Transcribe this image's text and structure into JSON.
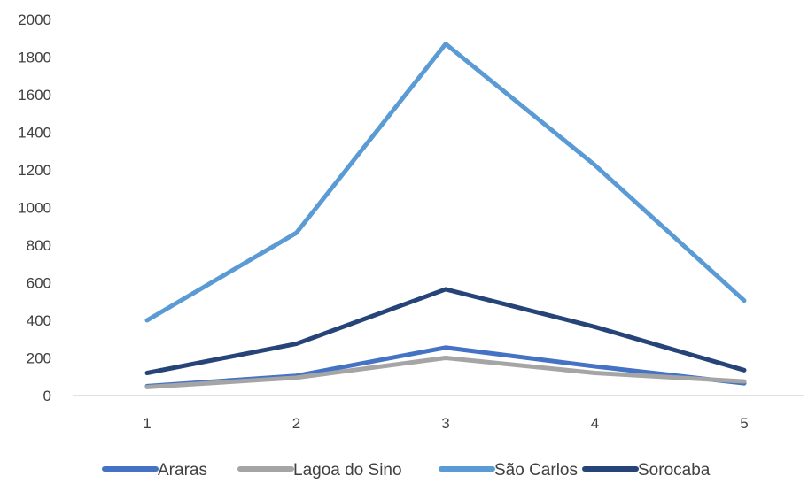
{
  "chart_data": {
    "type": "line",
    "title": "",
    "xlabel": "",
    "ylabel": "",
    "categories": [
      "1",
      "2",
      "3",
      "4",
      "5"
    ],
    "ylim": [
      0,
      2000
    ],
    "yticks": [
      "0",
      "200",
      "400",
      "600",
      "800",
      "1000",
      "1200",
      "1400",
      "1600",
      "1800",
      "2000"
    ],
    "grid": false,
    "legend_position": "bottom",
    "series": [
      {
        "name": "Araras",
        "color": "#4472C4",
        "values": [
          50,
          105,
          255,
          155,
          65
        ]
      },
      {
        "name": "Lagoa do Sino",
        "color": "#A5A5A5",
        "values": [
          45,
          95,
          200,
          120,
          75
        ]
      },
      {
        "name": "São Carlos",
        "color": "#5B9BD5",
        "values": [
          400,
          865,
          1870,
          1225,
          505
        ]
      },
      {
        "name": "Sorocaba",
        "color": "#264478",
        "values": [
          120,
          275,
          565,
          365,
          135
        ]
      }
    ]
  }
}
